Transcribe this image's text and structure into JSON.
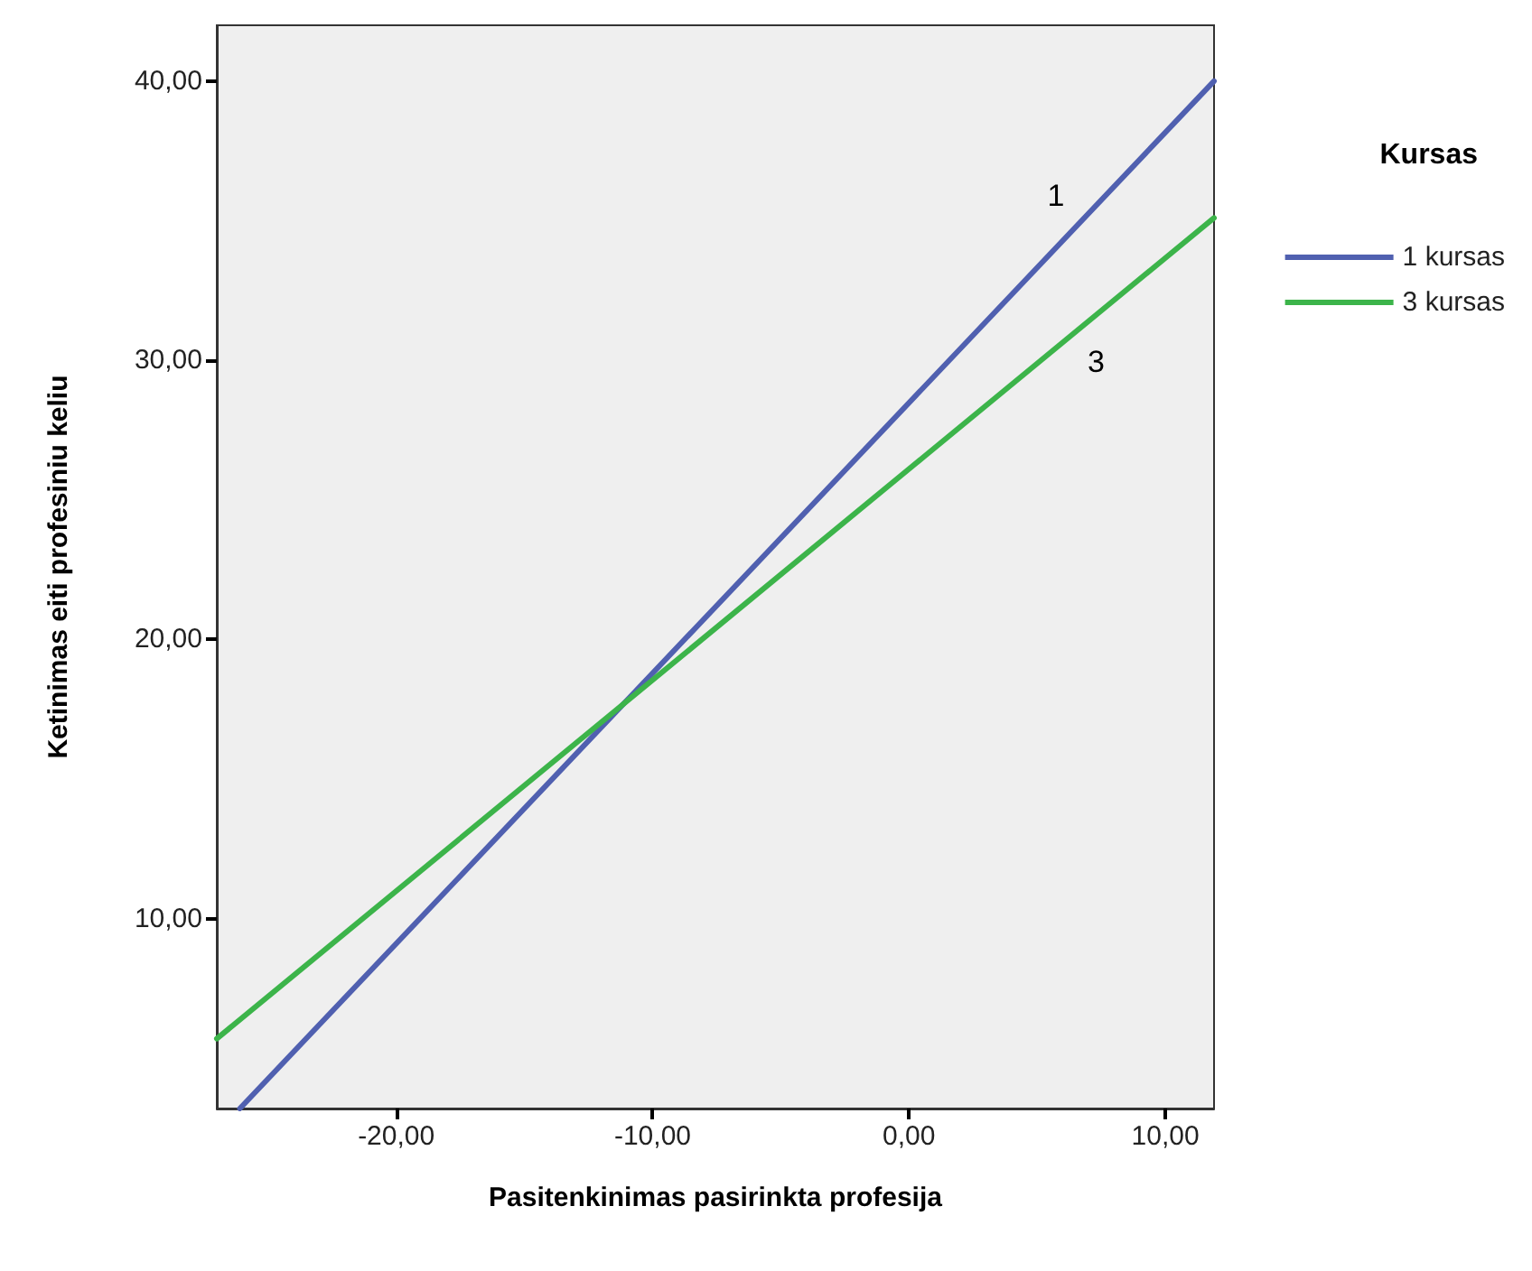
{
  "chart_data": {
    "type": "line",
    "xlabel": "Pasitenkinimas pasirinkta profesija",
    "ylabel": "Ketinimas eiti profesiniu keliu",
    "legend_title": "Kursas",
    "legend": "right",
    "marker": "none",
    "line_style": "solid",
    "grid": false,
    "xlim": [
      -27.0,
      11.9
    ],
    "ylim": [
      3.2,
      42.0
    ],
    "xticks": [
      {
        "value": -20,
        "label": "-20,00"
      },
      {
        "value": -10,
        "label": "-10,00"
      },
      {
        "value": 0,
        "label": "0,00"
      },
      {
        "value": 10,
        "label": "10,00"
      }
    ],
    "yticks": [
      {
        "value": 10,
        "label": "10,00"
      },
      {
        "value": 20,
        "label": "20,00"
      },
      {
        "value": 30,
        "label": "30,00"
      },
      {
        "value": 40,
        "label": "40,00"
      }
    ],
    "series": [
      {
        "name": "1 kursas",
        "color": "#5060b0",
        "x": [
          -26.1,
          11.9
        ],
        "values": [
          3.2,
          40.0
        ]
      },
      {
        "name": "3 kursas",
        "color": "#3cb44a",
        "x": [
          -27.0,
          11.9
        ],
        "values": [
          5.7,
          35.1
        ]
      }
    ],
    "annotations": [
      "1",
      "3"
    ]
  }
}
